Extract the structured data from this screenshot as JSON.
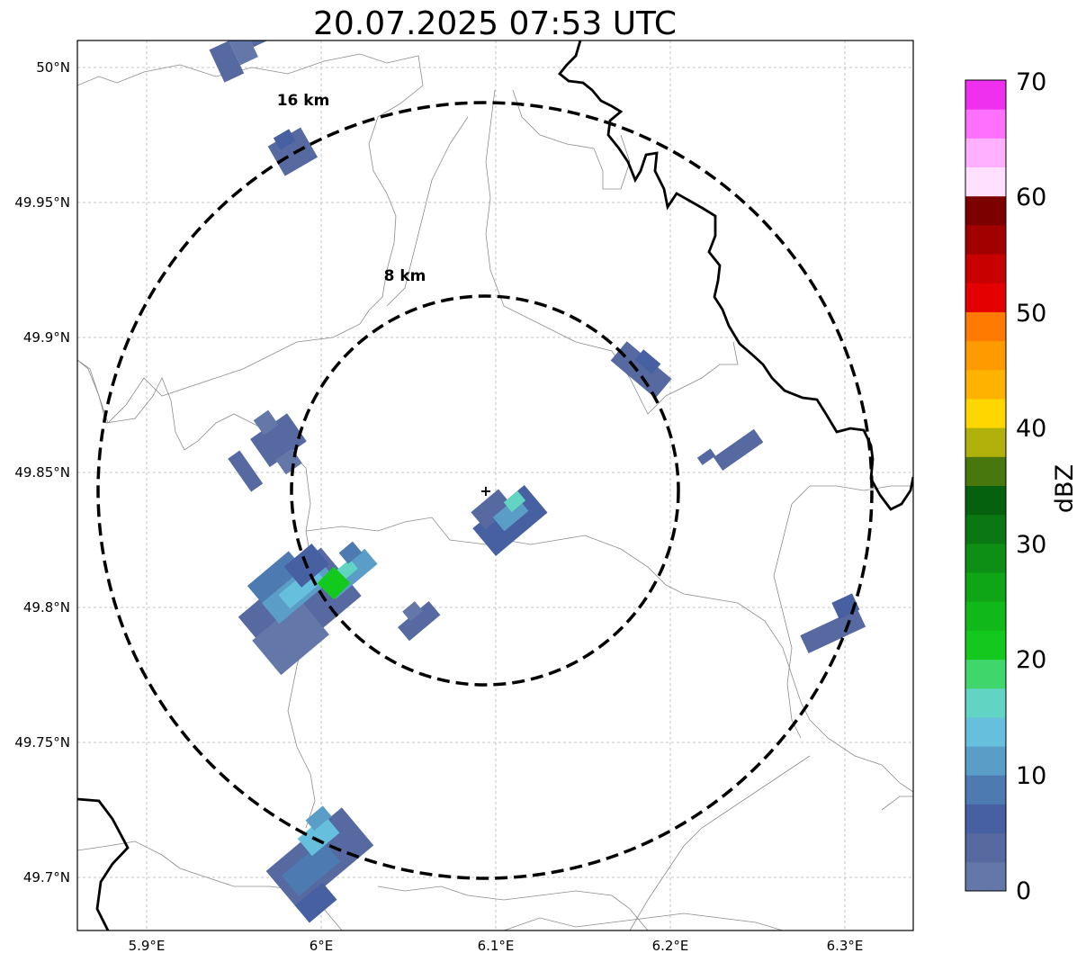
{
  "title": "20.07.2025 07:53 UTC",
  "map": {
    "lon_ticks": [
      "5.9°E",
      "6°E",
      "6.1°E",
      "6.2°E",
      "6.3°E"
    ],
    "lat_ticks": [
      "50°N",
      "49.95°N",
      "49.9°N",
      "49.85°N",
      "49.8°N",
      "49.75°N",
      "49.7°N"
    ],
    "rings": [
      {
        "label": "8 km",
        "radius_km": 8
      },
      {
        "label": "16 km",
        "radius_km": 16
      }
    ],
    "center_marker": "+"
  },
  "colorbar": {
    "label": "dBZ",
    "ticks": [
      "0",
      "10",
      "20",
      "30",
      "40",
      "50",
      "60",
      "70"
    ],
    "colors": [
      "#6378a9",
      "#5669a0",
      "#4760a2",
      "#4d7ab0",
      "#5a9ec8",
      "#66bfdc",
      "#62d4c4",
      "#3fd66c",
      "#14c91d",
      "#10b81a",
      "#0ea516",
      "#0c8f14",
      "#0b7712",
      "#06610e",
      "#48770d",
      "#b0b10b",
      "#fed700",
      "#ffb300",
      "#ff9b00",
      "#ff7a00",
      "#e40000",
      "#c80000",
      "#a20000",
      "#7c0000",
      "#ffe0ff",
      "#ffb0ff",
      "#ff70ff",
      "#ef30ef"
    ]
  }
}
